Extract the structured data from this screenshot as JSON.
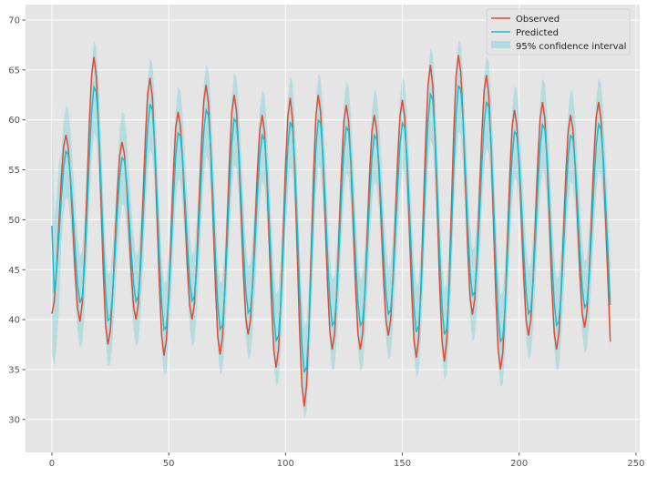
{
  "chart_data": {
    "type": "line",
    "title": "",
    "xlabel": "",
    "ylabel": "",
    "xlim": [
      -11.3,
      251.6
    ],
    "ylim": [
      26.7,
      71.55
    ],
    "xticks": [
      0,
      50,
      100,
      150,
      200,
      250
    ],
    "yticks": [
      30,
      35,
      40,
      45,
      50,
      55,
      60,
      65,
      70
    ],
    "grid": true,
    "legend_position": "top-right",
    "legend": [
      "Observed",
      "Predicted",
      "95% confidence interval"
    ],
    "colors": {
      "observed": "#E24A33",
      "predicted": "#17BECF",
      "ci": "#17BECF",
      "background": "#E5E5E5"
    },
    "ci_halfwidth": 4.6,
    "observed": [
      40.6,
      41.8,
      45.1,
      49.6,
      54.0,
      57.3,
      58.5,
      57.2,
      53.8,
      49.2,
      44.5,
      41.1,
      39.8,
      41.6,
      46.4,
      53.1,
      59.7,
      64.5,
      66.3,
      64.4,
      59.1,
      51.9,
      44.7,
      39.4,
      37.5,
      38.9,
      42.6,
      47.7,
      52.7,
      56.4,
      57.8,
      56.6,
      53.4,
      48.9,
      44.5,
      41.2,
      40.0,
      41.6,
      46.1,
      52.1,
      58.2,
      62.6,
      64.2,
      62.3,
      57.2,
      50.3,
      43.4,
      38.3,
      36.4,
      38.0,
      42.5,
      48.6,
      54.7,
      59.2,
      60.8,
      59.4,
      55.6,
      50.4,
      45.2,
      41.4,
      40.0,
      41.6,
      45.9,
      51.8,
      57.6,
      61.9,
      63.5,
      61.7,
      56.8,
      50.0,
      43.3,
      38.3,
      36.5,
      38.2,
      43.0,
      49.5,
      56.0,
      60.8,
      62.5,
      60.9,
      56.5,
      50.5,
      44.5,
      40.1,
      38.5,
      40.0,
      44.0,
      49.5,
      55.0,
      59.0,
      60.5,
      58.8,
      54.2,
      47.9,
      41.5,
      36.9,
      35.2,
      37.0,
      42.0,
      48.7,
      55.5,
      60.4,
      62.2,
      60.1,
      54.5,
      46.8,
      39.0,
      33.4,
      31.3,
      33.4,
      39.1,
      46.9,
      54.7,
      60.4,
      62.5,
      60.8,
      56.1,
      49.8,
      43.4,
      38.7,
      37.0,
      38.6,
      43.1,
      49.3,
      55.4,
      59.9,
      61.5,
      59.9,
      55.4,
      49.3,
      43.1,
      38.6,
      37.0,
      38.6,
      42.9,
      48.8,
      54.6,
      58.9,
      60.5,
      59.0,
      55.0,
      49.5,
      43.9,
      39.9,
      38.4,
      40.0,
      44.3,
      50.2,
      56.1,
      60.4,
      62.0,
      60.3,
      55.6,
      49.1,
      42.7,
      37.9,
      36.2,
      38.2,
      43.5,
      50.9,
      58.2,
      63.5,
      65.5,
      63.5,
      58.1,
      50.7,
      43.2,
      37.8,
      35.8,
      37.9,
      43.5,
      51.2,
      58.8,
      64.4,
      66.5,
      64.8,
      60.0,
      53.5,
      47.0,
      42.2,
      40.5,
      42.1,
      46.5,
      52.5,
      58.5,
      62.9,
      64.5,
      62.5,
      57.1,
      49.8,
      42.4,
      37.0,
      35.0,
      36.7,
      41.5,
      48.0,
      54.5,
      59.3,
      61.0,
      59.5,
      55.4,
      49.7,
      44.1,
      39.9,
      38.4,
      40.0,
      44.3,
      50.1,
      56.0,
      60.2,
      61.8,
      60.1,
      55.6,
      49.4,
      43.2,
      38.7,
      37.0,
      38.6,
      42.9,
      48.8,
      54.6,
      58.9,
      60.5,
      59.1,
      55.2,
      49.9,
      44.5,
      40.6,
      39.2,
      40.7,
      44.9,
      50.5,
      56.2,
      60.3,
      61.8,
      60.1,
      55.8,
      50.0,
      44.0,
      37.8
    ]
  }
}
